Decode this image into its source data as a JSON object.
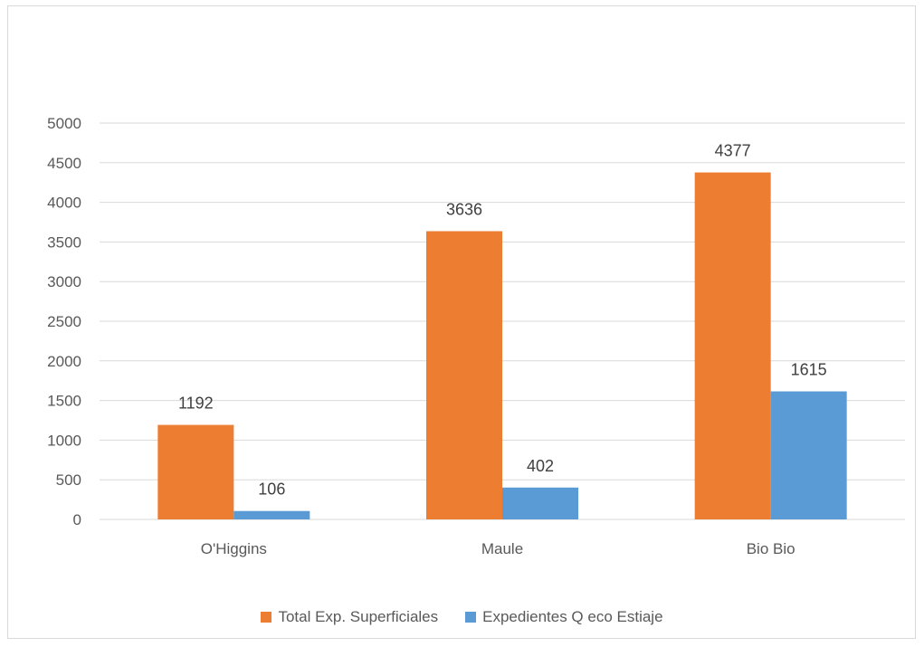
{
  "chart_data": {
    "type": "bar",
    "categories": [
      "O'Higgins",
      "Maule",
      "Bio Bio"
    ],
    "series": [
      {
        "name": "Total Exp. Superficiales",
        "values": [
          1192,
          3636,
          4377
        ],
        "color": "#ED7D31"
      },
      {
        "name": "Expedientes Q eco Estiaje",
        "values": [
          106,
          402,
          1615
        ],
        "color": "#5B9BD5"
      }
    ],
    "y_ticks": [
      "0",
      "500",
      "1000",
      "1500",
      "2000",
      "2500",
      "3000",
      "3500",
      "4000",
      "4500",
      "5000"
    ],
    "ylim": [
      0,
      5000
    ],
    "grid": true,
    "legend_position": "bottom",
    "data_labels": true
  }
}
